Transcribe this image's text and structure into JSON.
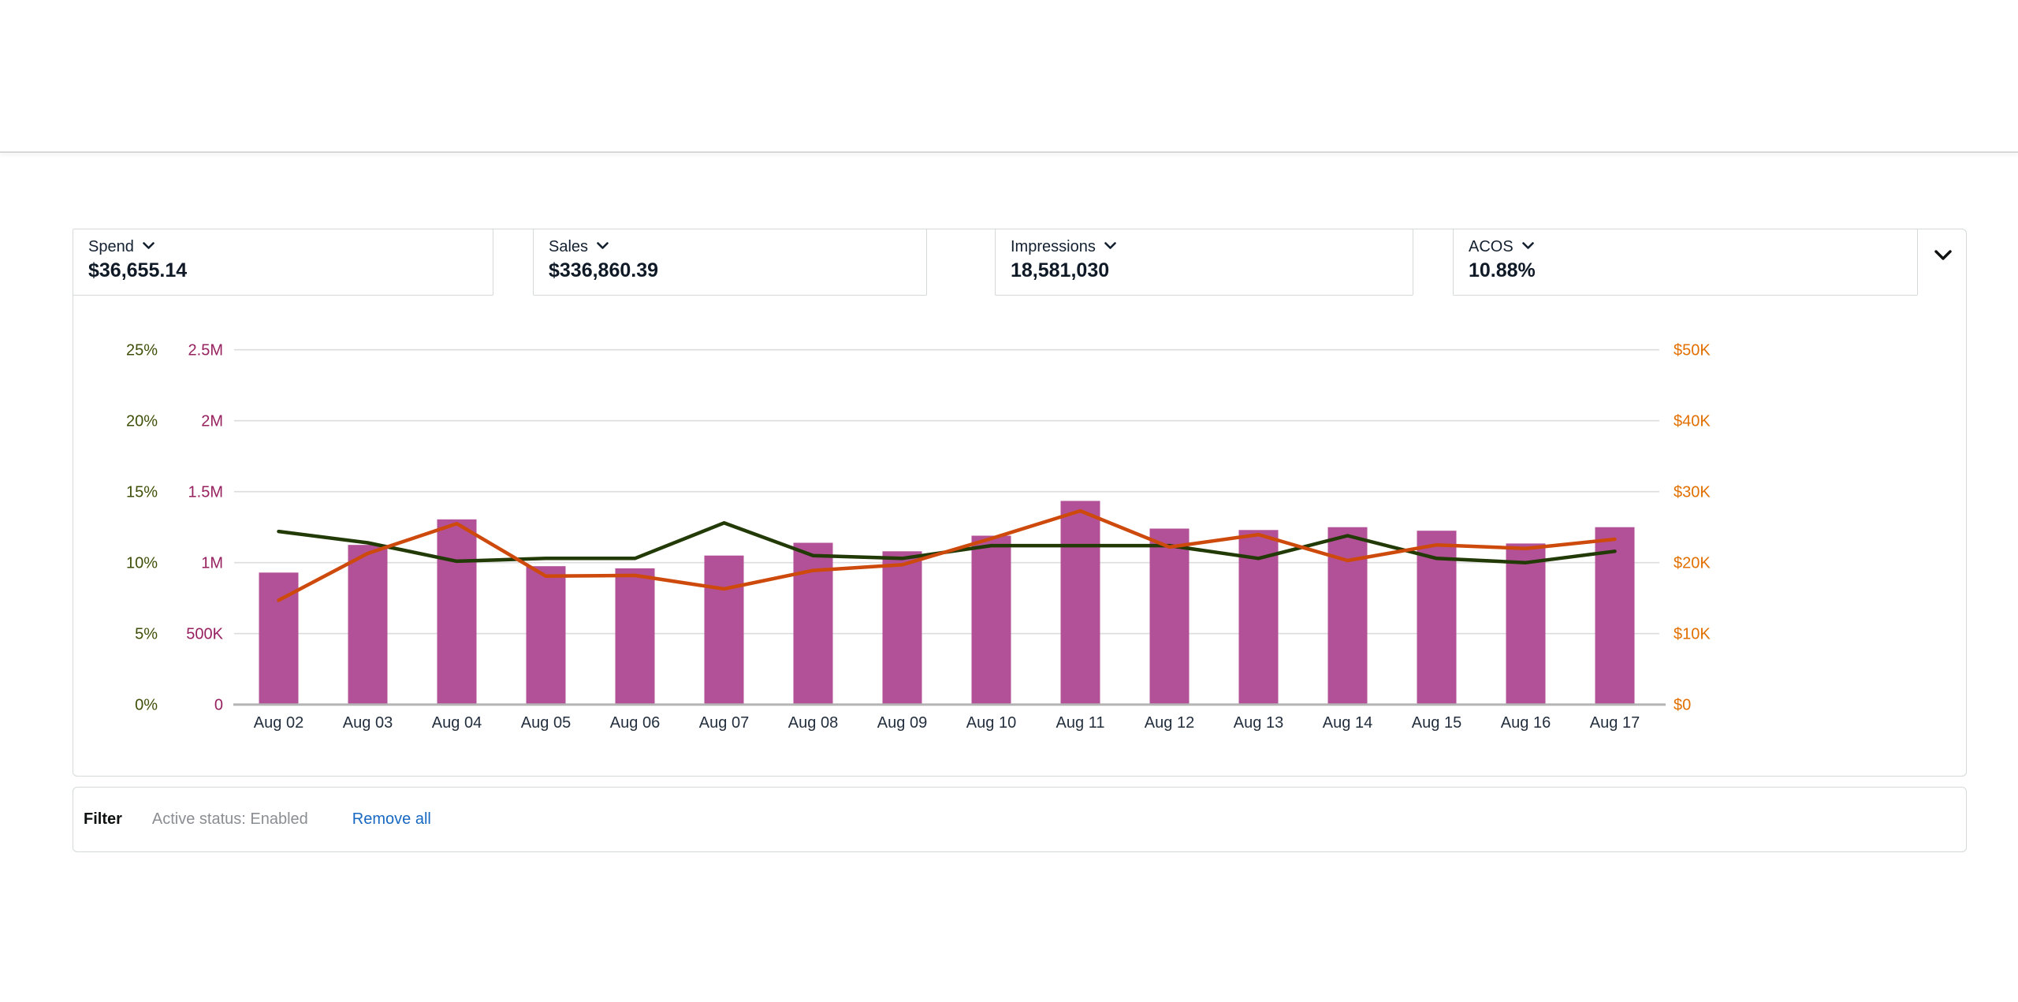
{
  "metric_cards": [
    {
      "label": "Spend",
      "value": "$36,655.14"
    },
    {
      "label": "Sales",
      "value": "$336,860.39"
    },
    {
      "label": "Impressions",
      "value": "18,581,030"
    },
    {
      "label": "ACOS",
      "value": "10.88%"
    }
  ],
  "filter_bar": {
    "title": "Filter",
    "active_filter": "Active status: Enabled",
    "remove_all_label": "Remove all"
  },
  "colors": {
    "bar_fill": "#b25197",
    "sales_line": "#cd4a0c",
    "acos_line": "#223a06",
    "axis_percent_labels": "#3e5008",
    "axis_millions_labels": "#97215f",
    "axis_dollars_labels": "#e17000",
    "x_labels": "#232f3e",
    "gridline": "#dcdcdc",
    "baseline": "#b5b5b5",
    "card_border": "#d5d9d9",
    "link_blue": "#1768c2",
    "muted_gray": "#8a8d92"
  },
  "chart_data": {
    "type": "bar+line combo",
    "title": "",
    "grid": true,
    "legend_position": "none",
    "categories": [
      "Aug 02",
      "Aug 03",
      "Aug 04",
      "Aug 05",
      "Aug 06",
      "Aug 07",
      "Aug 08",
      "Aug 09",
      "Aug 10",
      "Aug 11",
      "Aug 12",
      "Aug 13",
      "Aug 14",
      "Aug 15",
      "Aug 16",
      "Aug 17"
    ],
    "axes": {
      "left_percent": {
        "min": 0,
        "max": 25,
        "ticks": [
          "0%",
          "5%",
          "10%",
          "15%",
          "20%",
          "25%"
        ],
        "color": "#3e5008"
      },
      "left_millions": {
        "min": 0,
        "max": 2500000,
        "ticks": [
          "0",
          "500K",
          "1M",
          "1.5M",
          "2M",
          "2.5M"
        ],
        "color": "#97215f"
      },
      "right_dollars": {
        "min": 0,
        "max": 50000,
        "ticks": [
          "$0",
          "$10K",
          "$20K",
          "$30K",
          "$40K",
          "$50K"
        ],
        "color": "#e17000"
      }
    },
    "series": [
      {
        "name": "Impressions",
        "kind": "bar",
        "axis": "left_millions",
        "color": "#b25197",
        "values": [
          930000,
          1125000,
          1305000,
          975000,
          960000,
          1050000,
          1140000,
          1080000,
          1190000,
          1435000,
          1240000,
          1230000,
          1250000,
          1225000,
          1135000,
          1250000
        ]
      },
      {
        "name": "ACOS",
        "kind": "line",
        "axis": "left_percent",
        "color": "#223a06",
        "values": [
          12.2,
          11.4,
          10.1,
          10.3,
          10.3,
          12.8,
          10.5,
          10.3,
          11.2,
          11.2,
          11.2,
          10.3,
          11.9,
          10.3,
          10.0,
          10.8
        ]
      },
      {
        "name": "Sales",
        "kind": "line",
        "axis": "right_dollars",
        "color": "#cd4a0c",
        "values": [
          14700,
          21300,
          25500,
          18100,
          18200,
          16300,
          18900,
          19700,
          23400,
          27300,
          22200,
          23950,
          20300,
          22500,
          22000,
          23300
        ]
      }
    ]
  }
}
